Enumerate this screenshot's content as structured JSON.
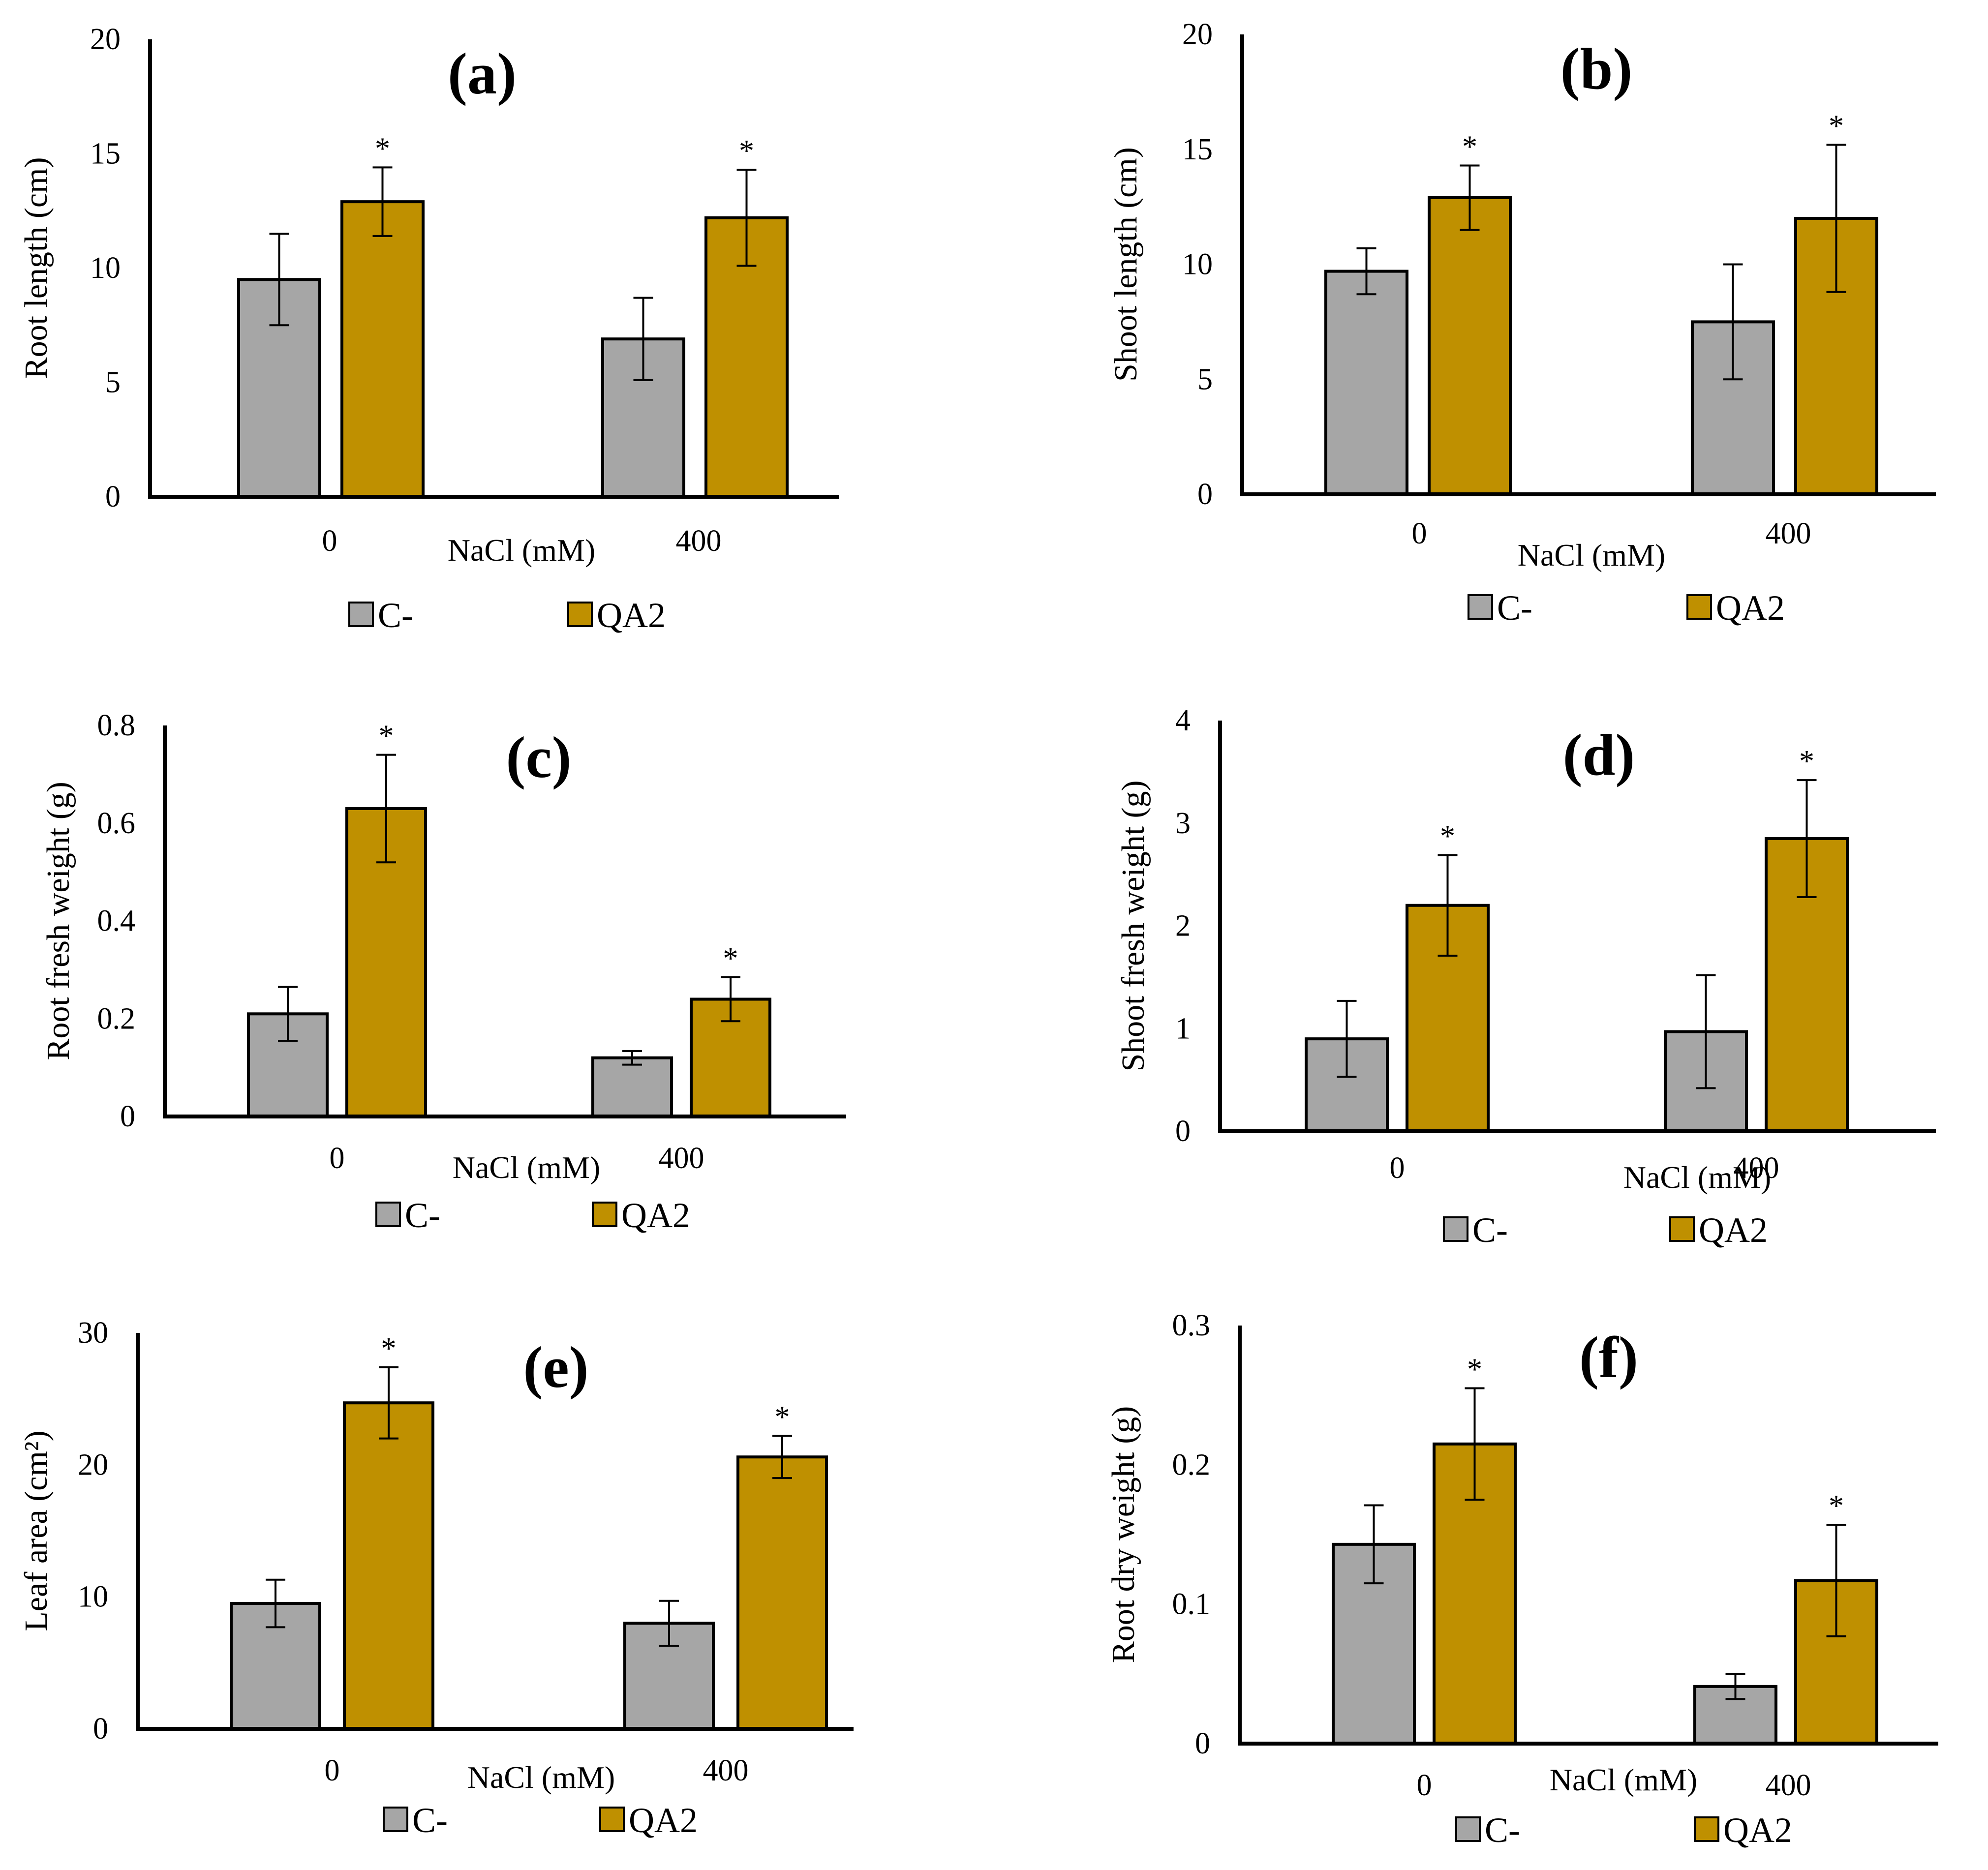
{
  "colors": {
    "C-": "#a6a6a6",
    "QA2": "#bf9000",
    "axis": "#000000",
    "outline": "#000000"
  },
  "chart_data": [
    {
      "type": "bar",
      "title": "(a)",
      "xlabel": "NaCl (mM)",
      "ylabel": "Root length (cm)",
      "categories": [
        "0",
        "400"
      ],
      "ylim": [
        0,
        20
      ],
      "yticks": [
        "0",
        "5",
        "10",
        "15",
        "20"
      ],
      "series": [
        {
          "name": "C-",
          "values": [
            9.5,
            6.9
          ],
          "errors": [
            2.0,
            1.8
          ],
          "sig": [
            "",
            ""
          ]
        },
        {
          "name": "QA2",
          "values": [
            12.9,
            12.2
          ],
          "errors": [
            1.5,
            2.1
          ],
          "sig": [
            "*",
            "*"
          ]
        }
      ],
      "legend": [
        "C-",
        "QA2"
      ]
    },
    {
      "type": "bar",
      "title": "(b)",
      "xlabel": "NaCl (mM)",
      "ylabel": "Shoot length (cm)",
      "categories": [
        "0",
        "400"
      ],
      "ylim": [
        0,
        20
      ],
      "yticks": [
        "0",
        "5",
        "10",
        "15",
        "20"
      ],
      "series": [
        {
          "name": "C-",
          "values": [
            9.7,
            7.5
          ],
          "errors": [
            1.0,
            2.5
          ],
          "sig": [
            "",
            ""
          ]
        },
        {
          "name": "QA2",
          "values": [
            12.9,
            12.0
          ],
          "errors": [
            1.4,
            3.2
          ],
          "sig": [
            "*",
            "*"
          ]
        }
      ],
      "legend": [
        "C-",
        "QA2"
      ]
    },
    {
      "type": "bar",
      "title": "(c)",
      "xlabel": "NaCl (mM)",
      "ylabel": "Root fresh weight (g)",
      "categories": [
        "0",
        "400"
      ],
      "ylim": [
        0,
        0.8
      ],
      "yticks": [
        "0",
        "0.2",
        "0.4",
        "0.6",
        "0.8"
      ],
      "series": [
        {
          "name": "C-",
          "values": [
            0.21,
            0.12
          ],
          "errors": [
            0.055,
            0.014
          ],
          "sig": [
            "",
            ""
          ]
        },
        {
          "name": "QA2",
          "values": [
            0.63,
            0.24
          ],
          "errors": [
            0.11,
            0.045
          ],
          "sig": [
            "*",
            "*"
          ]
        }
      ],
      "legend": [
        "C-",
        "QA2"
      ]
    },
    {
      "type": "bar",
      "title": "(d)",
      "xlabel": "NaCl (mM)",
      "ylabel": "Shoot fresh weight (g)",
      "categories": [
        "0",
        "400"
      ],
      "ylim": [
        0,
        4
      ],
      "yticks": [
        "0",
        "1",
        "2",
        "3",
        "4"
      ],
      "series": [
        {
          "name": "C-",
          "values": [
            0.9,
            0.97
          ],
          "errors": [
            0.37,
            0.55
          ],
          "sig": [
            "",
            ""
          ]
        },
        {
          "name": "QA2",
          "values": [
            2.2,
            2.85
          ],
          "errors": [
            0.49,
            0.57
          ],
          "sig": [
            "*",
            "*"
          ]
        }
      ],
      "legend": [
        "C-",
        "QA2"
      ]
    },
    {
      "type": "bar",
      "title": "(e)",
      "xlabel": "NaCl (mM)",
      "ylabel": "Leaf area (cm²)",
      "categories": [
        "0",
        "400"
      ],
      "ylim": [
        0,
        30
      ],
      "yticks": [
        "0",
        "10",
        "20",
        "30"
      ],
      "series": [
        {
          "name": "C-",
          "values": [
            9.5,
            8.0
          ],
          "errors": [
            1.8,
            1.7
          ],
          "sig": [
            "",
            ""
          ]
        },
        {
          "name": "QA2",
          "values": [
            24.7,
            20.6
          ],
          "errors": [
            2.7,
            1.6
          ],
          "sig": [
            "*",
            "*"
          ]
        }
      ],
      "legend": [
        "C-",
        "QA2"
      ]
    },
    {
      "type": "bar",
      "title": "(f)",
      "xlabel": "NaCl (mM)",
      "ylabel": "Root dry weight (g)",
      "categories": [
        "0",
        "400"
      ],
      "ylim": [
        0,
        0.3
      ],
      "yticks": [
        "0",
        "0.1",
        "0.2",
        "0.3"
      ],
      "series": [
        {
          "name": "C-",
          "values": [
            0.143,
            0.041
          ],
          "errors": [
            0.028,
            0.009
          ],
          "sig": [
            "",
            ""
          ]
        },
        {
          "name": "QA2",
          "values": [
            0.215,
            0.117
          ],
          "errors": [
            0.04,
            0.04
          ],
          "sig": [
            "*",
            "*"
          ]
        }
      ],
      "legend": [
        "C-",
        "QA2"
      ]
    }
  ]
}
